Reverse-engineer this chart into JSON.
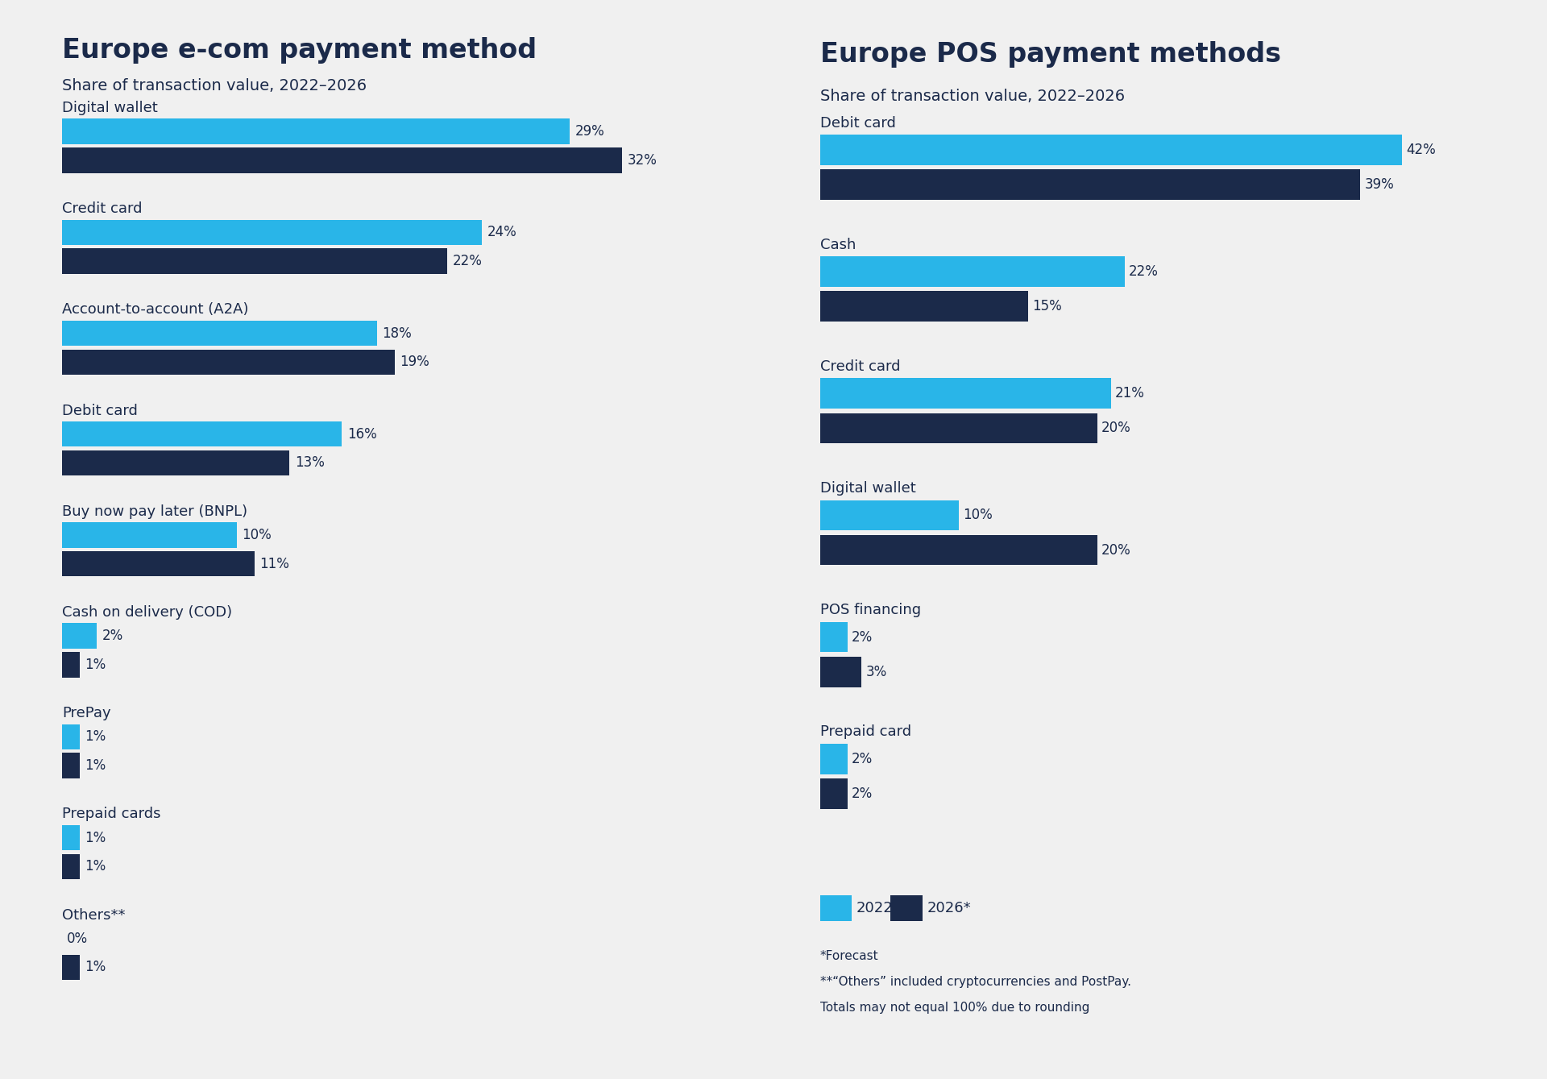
{
  "background_color": "#f0f0f0",
  "color_2022": "#29b5e8",
  "color_2026": "#1b2a4a",
  "text_color": "#1b2a4a",
  "left_title": "Europe e-com payment method",
  "left_subtitle": "Share of transaction value, 2022–2026",
  "left_categories": [
    "Digital wallet",
    "Credit card",
    "Account-to-account (A2A)",
    "Debit card",
    "Buy now pay later (BNPL)",
    "Cash on delivery (COD)",
    "PrePay",
    "Prepaid cards",
    "Others**"
  ],
  "left_2022": [
    29,
    24,
    18,
    16,
    10,
    2,
    1,
    1,
    0
  ],
  "left_2026": [
    32,
    22,
    19,
    13,
    11,
    1,
    1,
    1,
    1
  ],
  "right_title": "Europe POS payment methods",
  "right_subtitle": "Share of transaction value, 2022–2026",
  "right_categories": [
    "Debit card",
    "Cash",
    "Credit card",
    "Digital wallet",
    "POS financing",
    "Prepaid card"
  ],
  "right_2022": [
    42,
    22,
    21,
    10,
    2,
    2
  ],
  "right_2026": [
    39,
    15,
    20,
    20,
    3,
    2
  ],
  "legend_2022": "2022",
  "legend_2026": "2026*",
  "footnote1": "*Forecast",
  "footnote2": "**“Others” included cryptocurrencies and PostPay.",
  "footnote3": "Totals may not equal 100% due to rounding"
}
